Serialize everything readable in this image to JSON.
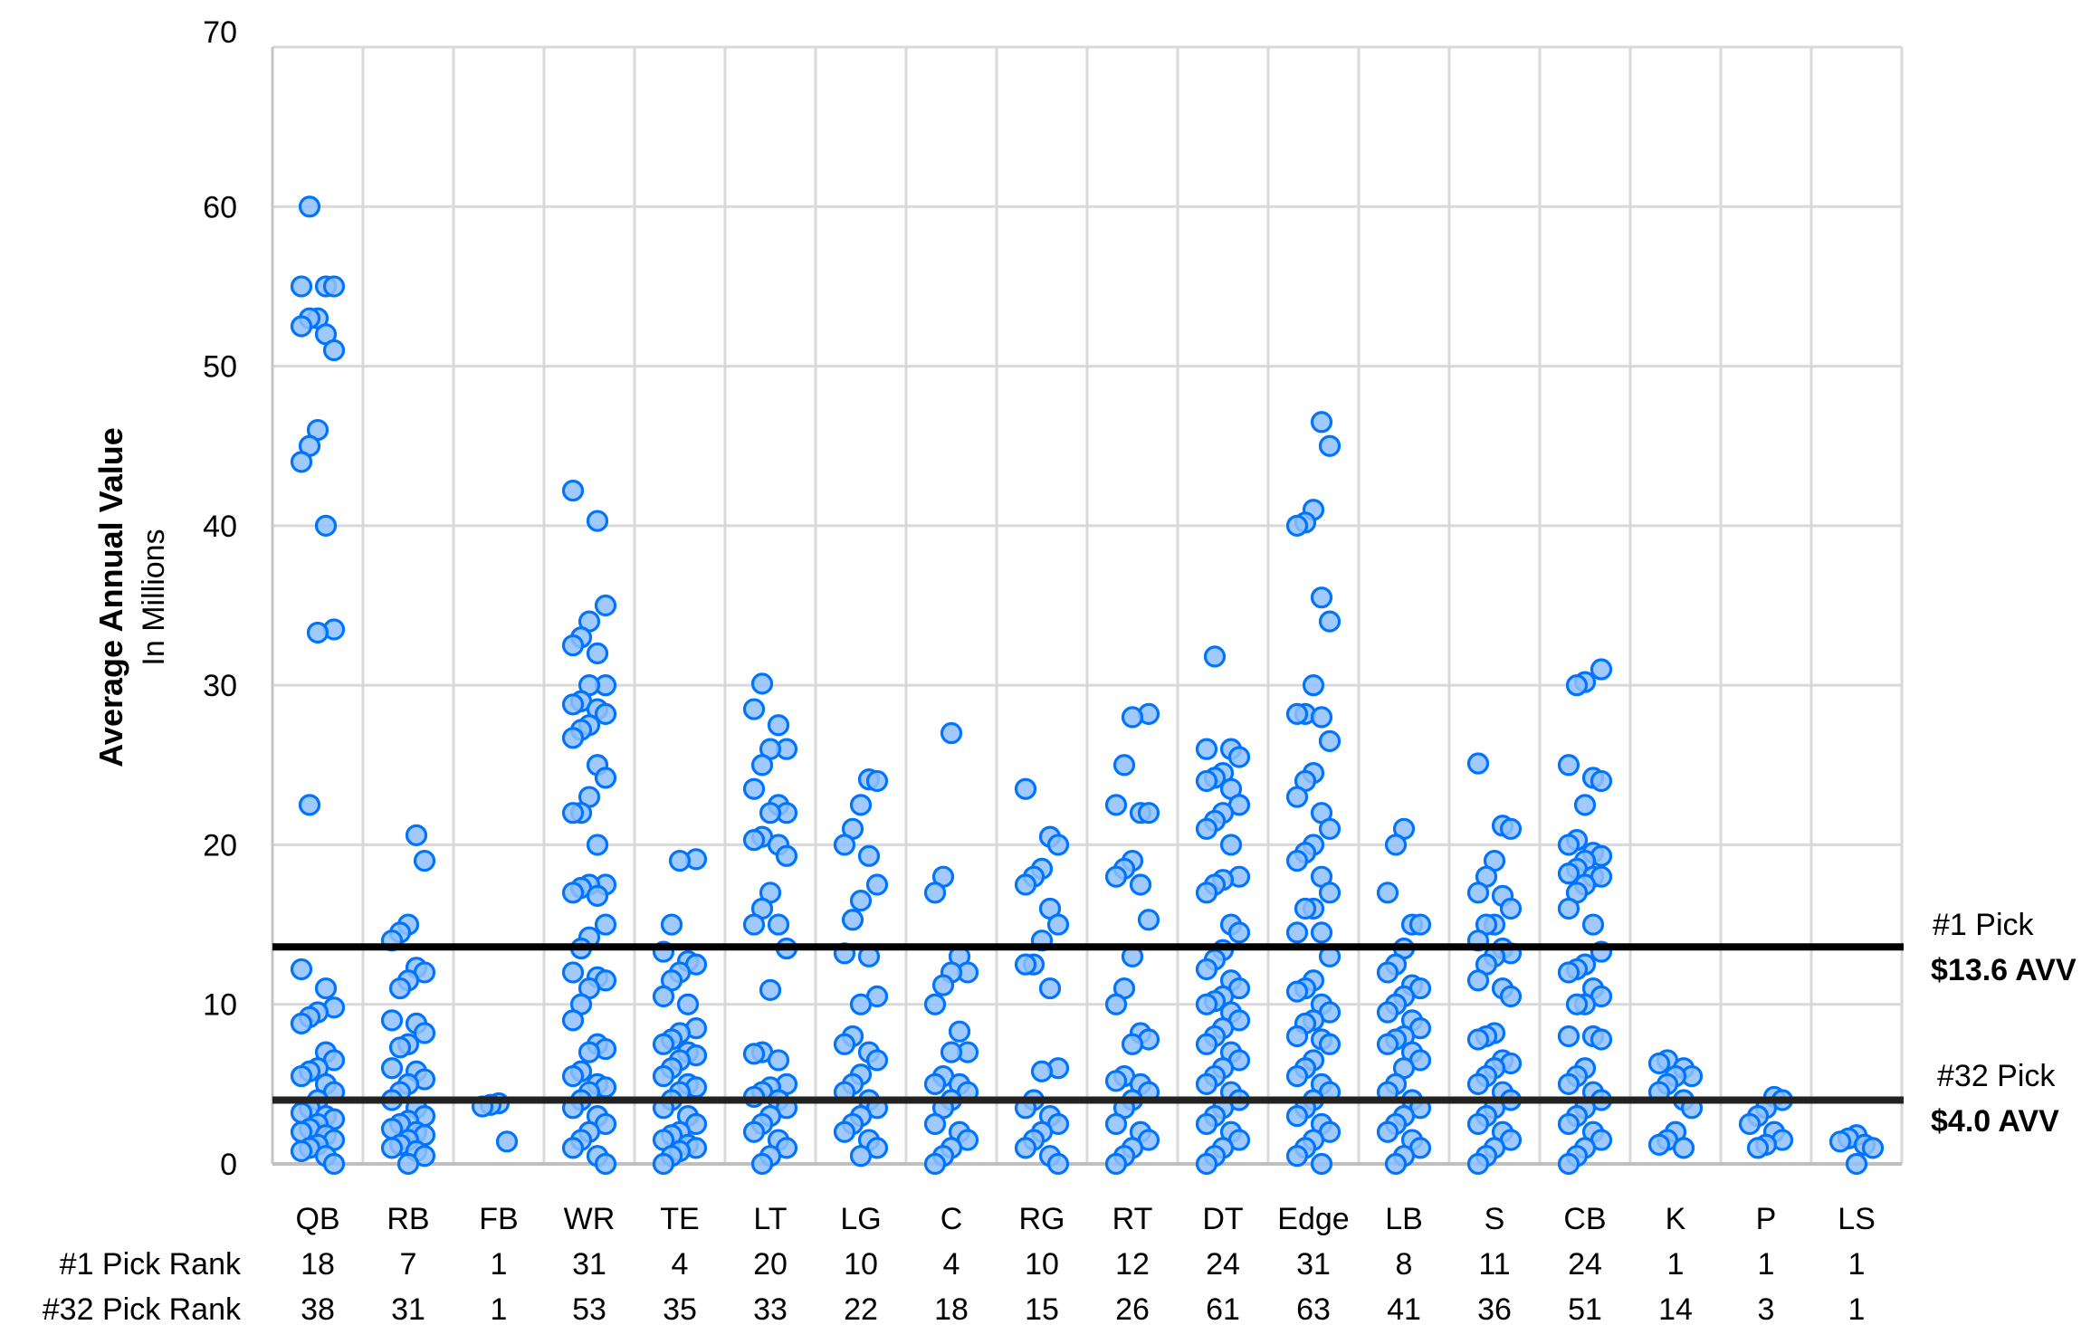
{
  "chart_data": {
    "type": "scatter",
    "subtype": "strip-plot",
    "title": "",
    "xlabel": "",
    "ylabel": "Average Annual Value",
    "ylabel_sub": "In Millions",
    "ylim": [
      0,
      70
    ],
    "yticks": [
      0,
      10,
      20,
      30,
      40,
      50,
      60,
      70
    ],
    "grid": true,
    "legend": "none",
    "marker_color": "#0073FF",
    "marker_fill": "#8FC1FF",
    "categories": [
      "QB",
      "RB",
      "FB",
      "WR",
      "TE",
      "LT",
      "LG",
      "C",
      "RG",
      "RT",
      "DT",
      "Edge",
      "LB",
      "S",
      "CB",
      "K",
      "P",
      "LS"
    ],
    "reference_lines": [
      {
        "label": "#1 Pick",
        "value_label": "$13.6 AVV",
        "y": 13.6,
        "color": "#000000"
      },
      {
        "label": "#32 Pick",
        "value_label": "$4.0 AVV",
        "y": 4.0,
        "color": "#222222"
      }
    ],
    "table_rows": [
      {
        "label": "#1 Pick Rank",
        "values": [
          18,
          7,
          1,
          31,
          4,
          20,
          10,
          4,
          10,
          12,
          24,
          31,
          8,
          11,
          24,
          1,
          1,
          1
        ]
      },
      {
        "label": "#32 Pick Rank",
        "values": [
          38,
          31,
          1,
          53,
          35,
          33,
          22,
          18,
          15,
          26,
          61,
          63,
          41,
          36,
          51,
          14,
          3,
          1
        ]
      }
    ],
    "series": [
      {
        "name": "QB",
        "values": [
          60,
          55,
          55,
          55,
          53,
          53,
          52.5,
          52,
          51,
          46,
          45,
          44,
          40,
          33.5,
          33.3,
          22.5,
          12.2,
          11,
          9.8,
          9.5,
          9.2,
          8.8,
          7,
          6.5,
          6,
          5.8,
          5.5,
          5,
          4.5,
          4,
          3.5,
          3.2,
          3,
          2.8,
          2.5,
          2.2,
          2,
          1.8,
          1.5,
          1.2,
          1,
          0.8,
          0.5,
          0
        ]
      },
      {
        "name": "RB",
        "values": [
          20.6,
          19,
          15,
          14.5,
          14,
          12.3,
          12,
          11.5,
          11,
          9,
          8.8,
          8.2,
          7.5,
          7.3,
          6,
          5.8,
          5.3,
          5,
          4.5,
          4,
          3.5,
          3,
          2.7,
          2.5,
          2.2,
          2,
          1.8,
          1.5,
          1.2,
          1,
          0.8,
          0.5,
          0
        ]
      },
      {
        "name": "FB",
        "values": [
          3.8,
          3.7,
          3.6,
          1.4
        ]
      },
      {
        "name": "WR",
        "values": [
          42.2,
          40.3,
          35,
          34,
          33,
          32.5,
          32,
          30,
          30,
          29,
          28.8,
          28.5,
          28.2,
          27.5,
          27.2,
          26.7,
          25,
          24.2,
          23,
          22,
          22,
          20,
          17.5,
          17.5,
          17.3,
          17,
          16.8,
          15,
          14.2,
          13.5,
          12,
          11.7,
          11.5,
          11,
          10,
          9,
          7.5,
          7.2,
          7,
          5.8,
          5.5,
          5,
          4.8,
          4.5,
          4,
          3.5,
          3,
          2.5,
          2,
          1.5,
          1,
          0.5,
          0
        ]
      },
      {
        "name": "TE",
        "values": [
          19.1,
          19,
          15,
          13.3,
          12.7,
          12.5,
          12,
          11.5,
          10.5,
          10,
          8.5,
          8.2,
          7.8,
          7.5,
          7,
          6.8,
          6.5,
          6,
          5.5,
          5,
          4.8,
          4.5,
          4,
          3.5,
          3,
          2.5,
          2,
          1.8,
          1.5,
          1.2,
          1,
          0.8,
          0.5,
          0
        ]
      },
      {
        "name": "LT",
        "values": [
          30.1,
          28.5,
          27.5,
          26,
          26,
          25,
          23.5,
          22.5,
          22,
          22,
          20.5,
          20.3,
          20,
          19.3,
          17,
          16,
          15,
          15,
          13.5,
          10.9,
          7,
          6.9,
          6.5,
          5,
          4.8,
          4.5,
          4.2,
          4,
          3.5,
          3,
          2.5,
          2,
          1.5,
          1,
          0.5,
          0
        ]
      },
      {
        "name": "LG",
        "values": [
          24.1,
          24,
          22.5,
          21,
          20,
          19.3,
          17.5,
          16.5,
          15.3,
          13.2,
          13,
          10.5,
          10,
          8,
          7.5,
          7,
          6.5,
          5.6,
          5,
          4.5,
          4,
          3.5,
          3,
          2.5,
          2,
          1.5,
          1,
          0.5
        ]
      },
      {
        "name": "C",
        "values": [
          27,
          18,
          17,
          13,
          12,
          12,
          11.2,
          10,
          8.3,
          7,
          7,
          5.5,
          5,
          5,
          4.5,
          4,
          3.5,
          2.5,
          2,
          1.5,
          1,
          0.5,
          0
        ]
      },
      {
        "name": "RG",
        "values": [
          23.5,
          20.5,
          20,
          18.5,
          18,
          17.5,
          16,
          15,
          14,
          12.5,
          12.5,
          11,
          6,
          5.8,
          4,
          3.5,
          3,
          2.5,
          2,
          1.5,
          1,
          0.5,
          0
        ]
      },
      {
        "name": "RT",
        "values": [
          28.2,
          28,
          25,
          22.5,
          22,
          22,
          19,
          18.5,
          18,
          17.5,
          15.3,
          13,
          11,
          10,
          8.2,
          7.8,
          7.5,
          5.5,
          5.2,
          5,
          4.5,
          4,
          3.5,
          2.5,
          2,
          1.5,
          1,
          0.5,
          0
        ]
      },
      {
        "name": "DT",
        "values": [
          31.8,
          26,
          26,
          25.5,
          24.5,
          24.2,
          24,
          23.5,
          22.5,
          22,
          21.5,
          21,
          20,
          18,
          17.8,
          17.5,
          17,
          15,
          14.5,
          13.4,
          12.8,
          12.2,
          11.5,
          11,
          10.5,
          10.2,
          10,
          9.5,
          9,
          8.5,
          8,
          7.5,
          7,
          6.5,
          6,
          5.5,
          5,
          4.5,
          4,
          3.5,
          3,
          2.5,
          2,
          1.5,
          1,
          0.5,
          0
        ]
      },
      {
        "name": "Edge",
        "values": [
          46.5,
          45,
          41,
          40.2,
          40,
          35.5,
          34,
          30,
          28.2,
          28.2,
          28,
          26.5,
          24.5,
          24,
          23,
          22,
          21,
          20,
          19.5,
          19,
          18,
          17,
          16,
          16,
          14.5,
          14.5,
          13,
          11.5,
          11,
          10.8,
          10,
          9.5,
          9,
          8.8,
          8,
          7.8,
          7.5,
          6.5,
          6,
          5.5,
          5,
          4.5,
          4,
          3.5,
          3,
          2.5,
          2,
          1.5,
          1,
          0.5,
          0
        ]
      },
      {
        "name": "LB",
        "values": [
          21,
          20,
          17,
          15,
          15,
          13.5,
          12.5,
          12,
          11.2,
          11,
          10.5,
          10,
          9.5,
          9,
          8.5,
          8,
          7.8,
          7.5,
          7,
          6.5,
          6,
          5,
          4.5,
          4,
          3.5,
          3,
          2.5,
          2,
          1.5,
          1,
          0.5,
          0
        ]
      },
      {
        "name": "S",
        "values": [
          25.1,
          21.2,
          21,
          19,
          18,
          17,
          16.8,
          16,
          15,
          15,
          14,
          13.5,
          13.2,
          13,
          12.5,
          11.5,
          11,
          10.5,
          8.2,
          8,
          7.8,
          6.5,
          6.3,
          6,
          5.5,
          5,
          4.5,
          4,
          3.5,
          3,
          2.5,
          2,
          1.5,
          1,
          0.5,
          0
        ]
      },
      {
        "name": "CB",
        "values": [
          31,
          30.2,
          30,
          25,
          24.2,
          24,
          22.5,
          20.3,
          20,
          19.5,
          19.3,
          19,
          18.5,
          18.2,
          18,
          18,
          17.5,
          17,
          16,
          15,
          13.3,
          12.5,
          12.2,
          12,
          11,
          10.5,
          10,
          10,
          8,
          8,
          7.8,
          6,
          5.5,
          5,
          4.5,
          4,
          3.5,
          3,
          2.5,
          2,
          1.5,
          1,
          0.5,
          0
        ]
      },
      {
        "name": "K",
        "values": [
          6.5,
          6.3,
          6,
          5.5,
          5.5,
          5,
          4.5,
          4,
          3.5,
          2,
          1.5,
          1.2,
          1
        ]
      },
      {
        "name": "P",
        "values": [
          4.2,
          4,
          3.5,
          3,
          2.5,
          2,
          1.5,
          1.2,
          1
        ]
      },
      {
        "name": "LS",
        "values": [
          1.8,
          1.6,
          1.4,
          1.2,
          1,
          0
        ]
      }
    ]
  },
  "axis": {
    "y_title": "Average Annual Value",
    "y_subtitle": "In Millions"
  },
  "annotations": {
    "pick1_label": "#1 Pick",
    "pick1_value": "$13.6 AVV",
    "pick32_label": "#32 Pick",
    "pick32_value": "$4.0 AVV"
  }
}
